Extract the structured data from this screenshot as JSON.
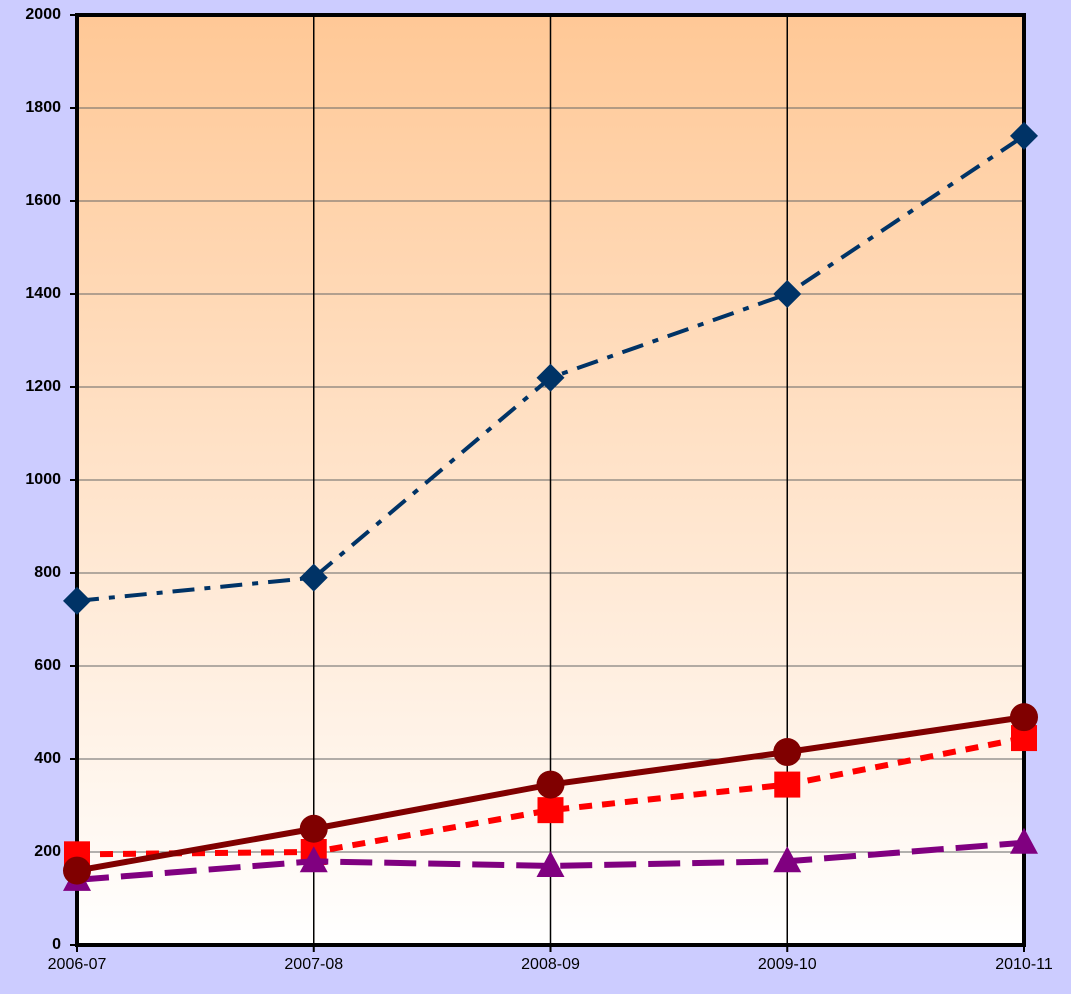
{
  "chart_data": {
    "type": "line",
    "categories": [
      "2006-07",
      "2007-08",
      "2008-09",
      "2009-10",
      "2010-11"
    ],
    "series": [
      {
        "color": "#003366",
        "marker": "diamond",
        "dash": "dash-dot",
        "values": [
          740,
          790,
          1220,
          1400,
          1740
        ]
      },
      {
        "color": "#ff0000",
        "marker": "square",
        "dash": "dot",
        "values": [
          195,
          200,
          290,
          345,
          445
        ]
      },
      {
        "color": "#800080",
        "marker": "triangle",
        "dash": "long-dash",
        "values": [
          140,
          180,
          170,
          180,
          220
        ]
      },
      {
        "color": "#800000",
        "marker": "circle",
        "dash": "solid",
        "values": [
          160,
          250,
          345,
          415,
          490
        ]
      }
    ],
    "ylim": [
      0,
      2000
    ],
    "yticks": [
      0,
      200,
      400,
      600,
      800,
      1000,
      1200,
      1400,
      1600,
      1800,
      2000
    ],
    "grid": true
  }
}
